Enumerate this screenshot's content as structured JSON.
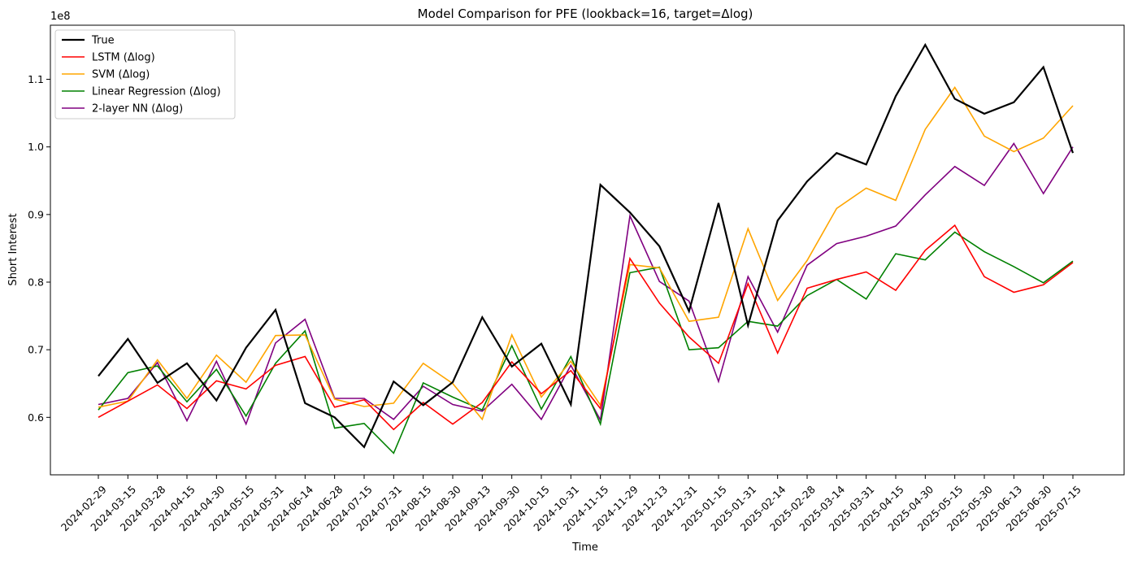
{
  "chart_data": {
    "type": "line",
    "title": "Model Comparison for PFE (lookback=16, target=Δlog)",
    "xlabel": "Time",
    "ylabel": "Short Interest",
    "y_offset_label": "1e8",
    "y_scale": 100000000,
    "ylim": [
      0.515,
      1.18
    ],
    "yticks": [
      0.6,
      0.7,
      0.8,
      0.9,
      1.0,
      1.1
    ],
    "ytick_labels": [
      "0.6",
      "0.7",
      "0.8",
      "0.9",
      "1.0",
      "1.1"
    ],
    "grid": false,
    "legend_position": "top-left",
    "x": [
      "2024-02-29",
      "2024-03-15",
      "2024-03-28",
      "2024-04-15",
      "2024-04-30",
      "2024-05-15",
      "2024-05-31",
      "2024-06-14",
      "2024-06-28",
      "2024-07-15",
      "2024-07-31",
      "2024-08-15",
      "2024-08-30",
      "2024-09-13",
      "2024-09-30",
      "2024-10-15",
      "2024-10-31",
      "2024-11-15",
      "2024-11-29",
      "2024-12-13",
      "2024-12-31",
      "2025-01-15",
      "2025-01-31",
      "2025-02-14",
      "2025-02-28",
      "2025-03-14",
      "2025-03-31",
      "2025-04-15",
      "2025-04-30",
      "2025-05-15",
      "2025-05-30",
      "2025-06-13",
      "2025-06-30",
      "2025-07-15"
    ],
    "series": [
      {
        "name": "True",
        "color": "#000000",
        "values": [
          0.661,
          0.716,
          0.651,
          0.68,
          0.625,
          0.703,
          0.759,
          0.621,
          0.6,
          0.556,
          0.653,
          0.618,
          0.652,
          0.748,
          0.675,
          0.709,
          0.619,
          0.944,
          0.903,
          0.853,
          0.757,
          0.917,
          0.736,
          0.891,
          0.949,
          0.991,
          0.974,
          1.075,
          1.151,
          1.071,
          1.049,
          1.066,
          1.118,
          0.991
        ]
      },
      {
        "name": "LSTM (Δlog)",
        "color": "#ff0000",
        "values": [
          0.6,
          0.624,
          0.648,
          0.613,
          0.654,
          0.642,
          0.677,
          0.69,
          0.615,
          0.626,
          0.582,
          0.622,
          0.59,
          0.622,
          0.682,
          0.635,
          0.669,
          0.613,
          0.835,
          0.769,
          0.719,
          0.68,
          0.798,
          0.695,
          0.791,
          0.804,
          0.815,
          0.788,
          0.847,
          0.884,
          0.808,
          0.785,
          0.796,
          0.829
        ]
      },
      {
        "name": "SVM (Δlog)",
        "color": "#ffa500",
        "values": [
          0.615,
          0.624,
          0.685,
          0.628,
          0.692,
          0.652,
          0.721,
          0.722,
          0.627,
          0.616,
          0.621,
          0.68,
          0.65,
          0.597,
          0.722,
          0.63,
          0.683,
          0.618,
          0.826,
          0.821,
          0.742,
          0.748,
          0.879,
          0.773,
          0.832,
          0.909,
          0.939,
          0.921,
          1.026,
          1.088,
          1.016,
          0.993,
          1.013,
          1.061
        ]
      },
      {
        "name": "Linear Regression (Δlog)",
        "color": "#008000",
        "values": [
          0.611,
          0.666,
          0.676,
          0.623,
          0.671,
          0.602,
          0.68,
          0.728,
          0.584,
          0.591,
          0.547,
          0.651,
          0.63,
          0.611,
          0.706,
          0.612,
          0.69,
          0.59,
          0.814,
          0.822,
          0.7,
          0.703,
          0.742,
          0.735,
          0.78,
          0.804,
          0.775,
          0.842,
          0.833,
          0.874,
          0.845,
          0.823,
          0.799,
          0.831
        ]
      },
      {
        "name": "2-layer NN (Δlog)",
        "color": "#800080",
        "values": [
          0.619,
          0.628,
          0.681,
          0.595,
          0.683,
          0.59,
          0.71,
          0.745,
          0.628,
          0.628,
          0.597,
          0.646,
          0.619,
          0.609,
          0.649,
          0.597,
          0.677,
          0.596,
          0.898,
          0.801,
          0.772,
          0.653,
          0.808,
          0.726,
          0.825,
          0.857,
          0.868,
          0.883,
          0.929,
          0.971,
          0.943,
          1.005,
          0.931,
          1.0
        ]
      }
    ]
  }
}
